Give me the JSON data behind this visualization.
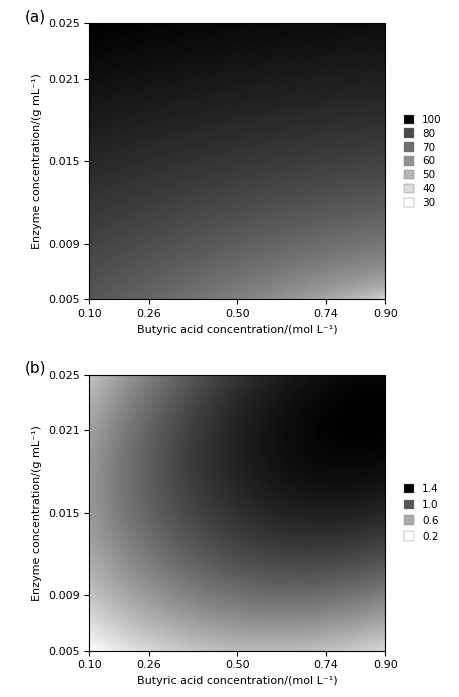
{
  "x_min": 0.1,
  "x_max": 0.9,
  "y_min": 0.005,
  "y_max": 0.025,
  "x_ticks": [
    0.1,
    0.26,
    0.5,
    0.74,
    0.9
  ],
  "y_ticks": [
    0.005,
    0.009,
    0.015,
    0.021,
    0.025
  ],
  "xlabel": "Butyric acid concentration/(mol L⁻¹)",
  "ylabel": "Enzyme concentration/(g mL⁻¹)",
  "plot_a_legend_values": [
    100,
    80,
    70,
    60,
    50,
    40,
    30
  ],
  "plot_b_legend_values": [
    1.4,
    1.0,
    0.6,
    0.2
  ],
  "label_a": "(a)",
  "label_b": "(b)"
}
